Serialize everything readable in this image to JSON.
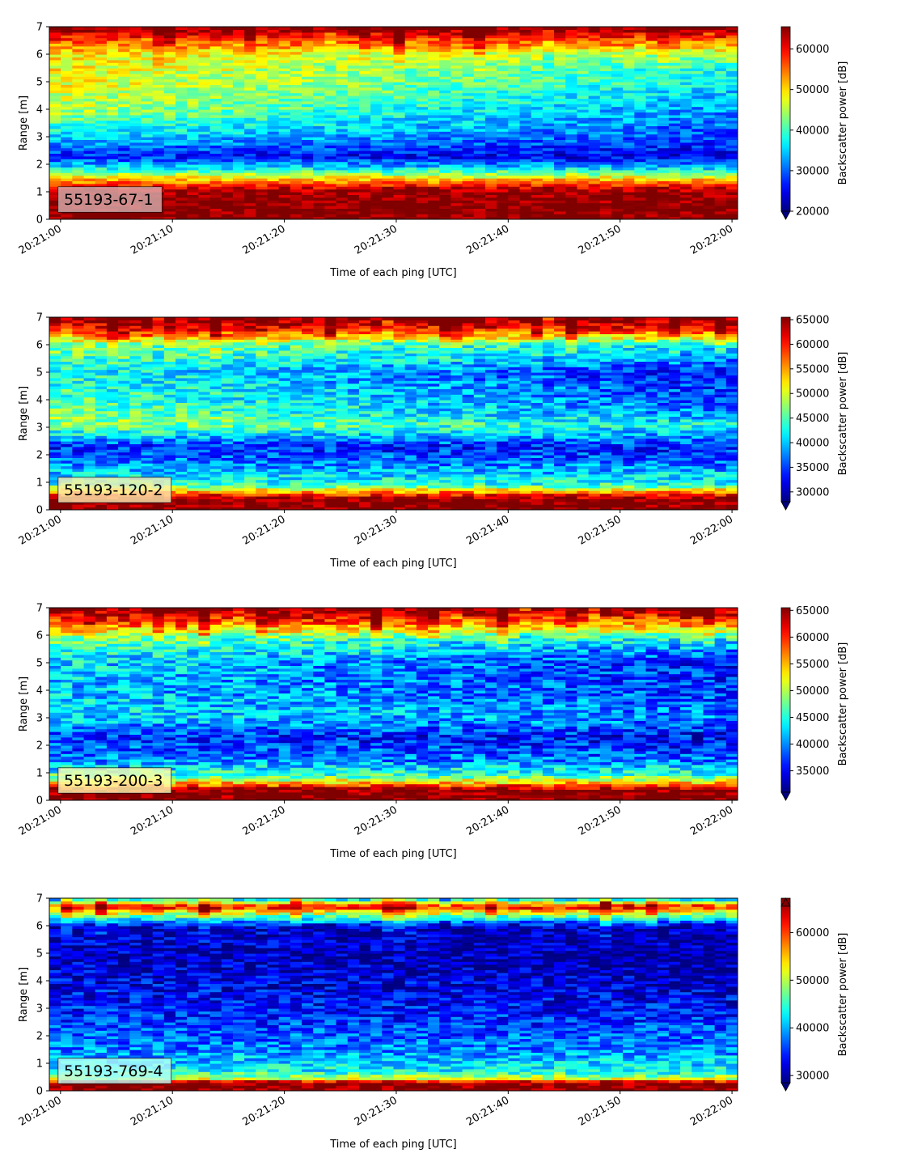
{
  "chart_data": [
    {
      "type": "heatmap",
      "label": "55193-67-1",
      "xlabel": "Time of each ping [UTC]",
      "ylabel": "Range [m]",
      "colorbar_label": "Backscatter power [dB]",
      "colormap": "jet",
      "colorbar_extend": "min",
      "x_ticks": [
        "20:21:00",
        "20:21:10",
        "20:21:20",
        "20:21:30",
        "20:21:40",
        "20:21:50",
        "20:22:00"
      ],
      "x_range_seconds": [
        -1,
        60.5
      ],
      "y_ticks": [
        0,
        1,
        2,
        3,
        4,
        5,
        6,
        7
      ],
      "ylim": [
        0,
        7
      ],
      "clim": [
        20000,
        65500
      ],
      "colorbar_ticks": [
        20000,
        30000,
        40000,
        50000,
        60000
      ],
      "profile": [
        {
          "range": 0.0,
          "value": 66000
        },
        {
          "range": 0.2,
          "value": 66000
        },
        {
          "range": 1.0,
          "value": 65000
        },
        {
          "range": 1.2,
          "value": 60000
        },
        {
          "range": 1.5,
          "value": 50000
        },
        {
          "range": 1.9,
          "value": 36000
        },
        {
          "range": 2.3,
          "value": 27000
        },
        {
          "range": 3.0,
          "value": 36000
        },
        {
          "range": 4.0,
          "value": 45000
        },
        {
          "range": 5.0,
          "value": 48000
        },
        {
          "range": 6.0,
          "value": 49000
        },
        {
          "range": 6.5,
          "value": 57000
        },
        {
          "range": 7.0,
          "value": 66000
        }
      ],
      "trend": [
        {
          "range": 0.0,
          "value": 0
        },
        {
          "range": 1.2,
          "value": 0
        },
        {
          "range": 2.5,
          "value": -4000
        },
        {
          "range": 4.0,
          "value": -13000
        },
        {
          "range": 5.5,
          "value": -10000
        },
        {
          "range": 6.3,
          "value": -2000
        },
        {
          "range": 7.0,
          "value": 0
        }
      ]
    },
    {
      "type": "heatmap",
      "label": "55193-120-2",
      "xlabel": "Time of each ping [UTC]",
      "ylabel": "Range [m]",
      "colorbar_label": "Backscatter power [dB]",
      "colormap": "jet",
      "colorbar_extend": "min",
      "x_ticks": [
        "20:21:00",
        "20:21:10",
        "20:21:20",
        "20:21:30",
        "20:21:40",
        "20:21:50",
        "20:22:00"
      ],
      "x_range_seconds": [
        -1,
        60.5
      ],
      "y_ticks": [
        0,
        1,
        2,
        3,
        4,
        5,
        6,
        7
      ],
      "ylim": [
        0,
        7
      ],
      "clim": [
        28000,
        65500
      ],
      "colorbar_ticks": [
        30000,
        35000,
        40000,
        45000,
        50000,
        55000,
        60000,
        65000
      ],
      "profile": [
        {
          "range": 0.0,
          "value": 66000
        },
        {
          "range": 0.4,
          "value": 66000
        },
        {
          "range": 0.6,
          "value": 58000
        },
        {
          "range": 0.9,
          "value": 44000
        },
        {
          "range": 1.5,
          "value": 39000
        },
        {
          "range": 2.3,
          "value": 34000
        },
        {
          "range": 3.1,
          "value": 48000
        },
        {
          "range": 4.0,
          "value": 45000
        },
        {
          "range": 5.0,
          "value": 43000
        },
        {
          "range": 6.0,
          "value": 47000
        },
        {
          "range": 6.5,
          "value": 60000
        },
        {
          "range": 7.0,
          "value": 66000
        }
      ],
      "trend": [
        {
          "range": 0.0,
          "value": 0
        },
        {
          "range": 0.9,
          "value": 0
        },
        {
          "range": 2.5,
          "value": -1000
        },
        {
          "range": 3.5,
          "value": -9000
        },
        {
          "range": 5.0,
          "value": -10000
        },
        {
          "range": 6.3,
          "value": -3000
        },
        {
          "range": 7.0,
          "value": 0
        }
      ]
    },
    {
      "type": "heatmap",
      "label": "55193-200-3",
      "xlabel": "Time of each ping [UTC]",
      "ylabel": "Range [m]",
      "colorbar_label": "Backscatter power [dB]",
      "colormap": "jet",
      "colorbar_extend": "min",
      "x_ticks": [
        "20:21:00",
        "20:21:10",
        "20:21:20",
        "20:21:30",
        "20:21:40",
        "20:21:50",
        "20:22:00"
      ],
      "x_range_seconds": [
        -1,
        60.5
      ],
      "y_ticks": [
        0,
        1,
        2,
        3,
        4,
        5,
        6,
        7
      ],
      "ylim": [
        0,
        7
      ],
      "clim": [
        31000,
        65500
      ],
      "colorbar_ticks": [
        35000,
        40000,
        45000,
        50000,
        55000,
        60000,
        65000
      ],
      "profile": [
        {
          "range": 0.0,
          "value": 66000
        },
        {
          "range": 0.4,
          "value": 66000
        },
        {
          "range": 0.6,
          "value": 56000
        },
        {
          "range": 0.9,
          "value": 46000
        },
        {
          "range": 1.5,
          "value": 40000
        },
        {
          "range": 2.3,
          "value": 37000
        },
        {
          "range": 3.0,
          "value": 43000
        },
        {
          "range": 4.0,
          "value": 42000
        },
        {
          "range": 5.0,
          "value": 43000
        },
        {
          "range": 5.8,
          "value": 47000
        },
        {
          "range": 6.4,
          "value": 58000
        },
        {
          "range": 7.0,
          "value": 66000
        }
      ],
      "trend": [
        {
          "range": 0.0,
          "value": 0
        },
        {
          "range": 0.9,
          "value": 0
        },
        {
          "range": 3.0,
          "value": -3000
        },
        {
          "range": 5.0,
          "value": -7000
        },
        {
          "range": 6.3,
          "value": -3000
        },
        {
          "range": 7.0,
          "value": 0
        }
      ]
    },
    {
      "type": "heatmap",
      "label": "55193-769-4",
      "xlabel": "Time of each ping [UTC]",
      "ylabel": "Range [m]",
      "colorbar_label": "Backscatter power [dB]",
      "colormap": "jet",
      "colorbar_extend": "both",
      "x_ticks": [
        "20:21:00",
        "20:21:10",
        "20:21:20",
        "20:21:30",
        "20:21:40",
        "20:21:50",
        "20:22:00"
      ],
      "x_range_seconds": [
        -1,
        60.5
      ],
      "y_ticks": [
        0,
        1,
        2,
        3,
        4,
        5,
        6,
        7
      ],
      "ylim": [
        0,
        7
      ],
      "clim": [
        28500,
        65500
      ],
      "colorbar_ticks": [
        30000,
        40000,
        50000,
        60000
      ],
      "profile": [
        {
          "range": 0.0,
          "value": 66000
        },
        {
          "range": 0.3,
          "value": 66000
        },
        {
          "range": 0.45,
          "value": 50000
        },
        {
          "range": 0.7,
          "value": 43000
        },
        {
          "range": 1.5,
          "value": 38000
        },
        {
          "range": 3.0,
          "value": 34000
        },
        {
          "range": 5.0,
          "value": 31000
        },
        {
          "range": 6.0,
          "value": 32000
        },
        {
          "range": 6.5,
          "value": 52000
        },
        {
          "range": 6.7,
          "value": 62000
        },
        {
          "range": 7.0,
          "value": 40000
        }
      ],
      "trend": [
        {
          "range": 0.0,
          "value": 0
        },
        {
          "range": 2.0,
          "value": 0
        },
        {
          "range": 5.0,
          "value": -2000
        },
        {
          "range": 7.0,
          "value": 0
        }
      ]
    }
  ]
}
